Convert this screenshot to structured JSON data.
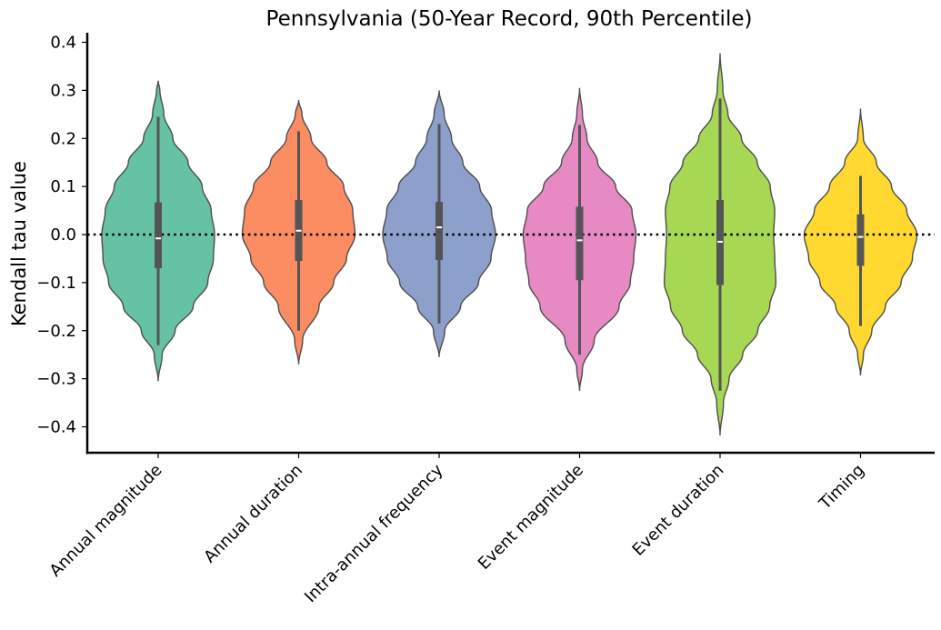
{
  "chart_data": {
    "type": "violin",
    "title": "Pennsylvania (50-Year Record, 90th Percentile)",
    "xlabel": "",
    "ylabel": "Kendall tau value",
    "ylim": [
      -0.46,
      0.42
    ],
    "yticks": [
      -0.4,
      -0.3,
      -0.2,
      -0.1,
      0.0,
      0.1,
      0.2,
      0.3,
      0.4
    ],
    "ytick_labels": [
      "−0.4",
      "−0.3",
      "−0.2",
      "−0.1",
      "0.0",
      "0.1",
      "0.2",
      "0.3",
      "0.4"
    ],
    "reference_line": 0.0,
    "grid": false,
    "categories": [
      "Annual magnitude",
      "Annual duration",
      "Intra-annual frequency",
      "Event magnitude",
      "Event duration",
      "Timing"
    ],
    "series": [
      {
        "color": "#66c2a5",
        "median": -0.008,
        "q1": -0.07,
        "q3": 0.067,
        "whisker_low": -0.23,
        "whisker_high": 0.245,
        "kde_min": -0.305,
        "kde_max": 0.32,
        "density": [
          [
            -0.305,
            0.0
          ],
          [
            -0.25,
            0.07
          ],
          [
            -0.2,
            0.3
          ],
          [
            -0.15,
            0.62
          ],
          [
            -0.1,
            0.88
          ],
          [
            -0.05,
            0.98
          ],
          [
            0.0,
            1.0
          ],
          [
            0.05,
            0.94
          ],
          [
            0.1,
            0.78
          ],
          [
            0.15,
            0.53
          ],
          [
            0.2,
            0.26
          ],
          [
            0.25,
            0.1
          ],
          [
            0.3,
            0.03
          ],
          [
            0.32,
            0.0
          ]
        ]
      },
      {
        "color": "#fc8d62",
        "median": 0.008,
        "q1": -0.055,
        "q3": 0.072,
        "whisker_low": -0.2,
        "whisker_high": 0.215,
        "kde_min": -0.27,
        "kde_max": 0.28,
        "density": [
          [
            -0.27,
            0.0
          ],
          [
            -0.22,
            0.07
          ],
          [
            -0.15,
            0.36
          ],
          [
            -0.1,
            0.62
          ],
          [
            -0.05,
            0.85
          ],
          [
            0.0,
            1.0
          ],
          [
            0.05,
            0.96
          ],
          [
            0.1,
            0.8
          ],
          [
            0.15,
            0.5
          ],
          [
            0.2,
            0.22
          ],
          [
            0.25,
            0.06
          ],
          [
            0.28,
            0.0
          ]
        ]
      },
      {
        "color": "#8da0cb",
        "median": 0.015,
        "q1": -0.053,
        "q3": 0.068,
        "whisker_low": -0.185,
        "whisker_high": 0.23,
        "kde_min": -0.255,
        "kde_max": 0.3,
        "density": [
          [
            -0.255,
            0.0
          ],
          [
            -0.2,
            0.1
          ],
          [
            -0.15,
            0.38
          ],
          [
            -0.1,
            0.7
          ],
          [
            -0.05,
            0.92
          ],
          [
            0.0,
            1.0
          ],
          [
            0.05,
            0.93
          ],
          [
            0.1,
            0.72
          ],
          [
            0.15,
            0.42
          ],
          [
            0.2,
            0.22
          ],
          [
            0.25,
            0.09
          ],
          [
            0.3,
            0.0
          ]
        ]
      },
      {
        "color": "#e78ac3",
        "median": -0.012,
        "q1": -0.095,
        "q3": 0.058,
        "whisker_low": -0.25,
        "whisker_high": 0.228,
        "kde_min": -0.325,
        "kde_max": 0.305,
        "density": [
          [
            -0.325,
            0.0
          ],
          [
            -0.28,
            0.05
          ],
          [
            -0.22,
            0.26
          ],
          [
            -0.15,
            0.7
          ],
          [
            -0.1,
            0.9
          ],
          [
            -0.05,
            0.96
          ],
          [
            0.0,
            1.0
          ],
          [
            0.05,
            0.93
          ],
          [
            0.1,
            0.64
          ],
          [
            0.15,
            0.32
          ],
          [
            0.2,
            0.13
          ],
          [
            0.25,
            0.05
          ],
          [
            0.305,
            0.0
          ]
        ]
      },
      {
        "color": "#a6d854",
        "median": -0.015,
        "q1": -0.105,
        "q3": 0.072,
        "whisker_low": -0.325,
        "whisker_high": 0.283,
        "kde_min": -0.418,
        "kde_max": 0.377,
        "density": [
          [
            -0.418,
            0.0
          ],
          [
            -0.35,
            0.06
          ],
          [
            -0.3,
            0.16
          ],
          [
            -0.25,
            0.4
          ],
          [
            -0.2,
            0.67
          ],
          [
            -0.15,
            0.88
          ],
          [
            -0.1,
            0.99
          ],
          [
            -0.05,
            0.97
          ],
          [
            0.0,
            0.95
          ],
          [
            0.05,
            0.97
          ],
          [
            0.1,
            0.89
          ],
          [
            0.15,
            0.66
          ],
          [
            0.2,
            0.38
          ],
          [
            0.25,
            0.14
          ],
          [
            0.3,
            0.05
          ],
          [
            0.377,
            0.0
          ]
        ]
      },
      {
        "color": "#ffd92f",
        "median": -0.005,
        "q1": -0.065,
        "q3": 0.042,
        "whisker_low": -0.19,
        "whisker_high": 0.122,
        "kde_min": -0.293,
        "kde_max": 0.262,
        "density": [
          [
            -0.293,
            0.0
          ],
          [
            -0.25,
            0.05
          ],
          [
            -0.2,
            0.2
          ],
          [
            -0.15,
            0.44
          ],
          [
            -0.1,
            0.72
          ],
          [
            -0.05,
            0.92
          ],
          [
            0.0,
            1.0
          ],
          [
            0.05,
            0.82
          ],
          [
            0.1,
            0.55
          ],
          [
            0.15,
            0.28
          ],
          [
            0.2,
            0.05
          ],
          [
            0.262,
            0.0
          ]
        ]
      }
    ]
  }
}
